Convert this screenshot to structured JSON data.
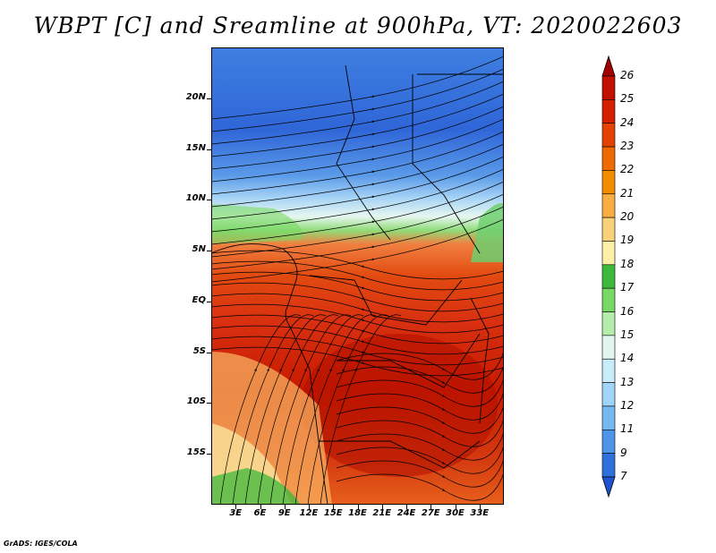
{
  "title": "WBPT [C] and Sreamline at 900hPa, VT: 2020022603",
  "footer": "GrADS: IGES/COLA",
  "map": {
    "lon_range": [
      0,
      36
    ],
    "lat_range": [
      -20,
      25
    ],
    "lat_ticks": [
      {
        "label": "20N",
        "lat": 20
      },
      {
        "label": "15N",
        "lat": 15
      },
      {
        "label": "10N",
        "lat": 10
      },
      {
        "label": "5N",
        "lat": 5
      },
      {
        "label": "EQ",
        "lat": 0
      },
      {
        "label": "5S",
        "lat": -5
      },
      {
        "label": "10S",
        "lat": -10
      },
      {
        "label": "15S",
        "lat": -15
      }
    ],
    "lon_ticks": [
      {
        "label": "3E",
        "lon": 3
      },
      {
        "label": "6E",
        "lon": 6
      },
      {
        "label": "9E",
        "lon": 9
      },
      {
        "label": "12E",
        "lon": 12
      },
      {
        "label": "15E",
        "lon": 15
      },
      {
        "label": "18E",
        "lon": 18
      },
      {
        "label": "21E",
        "lon": 21
      },
      {
        "label": "24E",
        "lon": 24
      },
      {
        "label": "27E",
        "lon": 27
      },
      {
        "label": "30E",
        "lon": 30
      },
      {
        "label": "33E",
        "lon": 33
      }
    ]
  },
  "colorbar": {
    "labels": [
      "26",
      "25",
      "24",
      "23",
      "22",
      "21",
      "20",
      "19",
      "18",
      "17",
      "16",
      "15",
      "14",
      "13",
      "12",
      "11",
      "9",
      "7"
    ],
    "colors": [
      "#a50000",
      "#c01000",
      "#d42000",
      "#e34200",
      "#ef6a00",
      "#f48c00",
      "#f8ae40",
      "#f8d078",
      "#fcefa8",
      "#3cb83c",
      "#78d864",
      "#b4ecaa",
      "#e4f6f0",
      "#c8ecfa",
      "#a0d4f8",
      "#78b8f0",
      "#4e94e8",
      "#3070dc",
      "#1e54d0"
    ]
  }
}
